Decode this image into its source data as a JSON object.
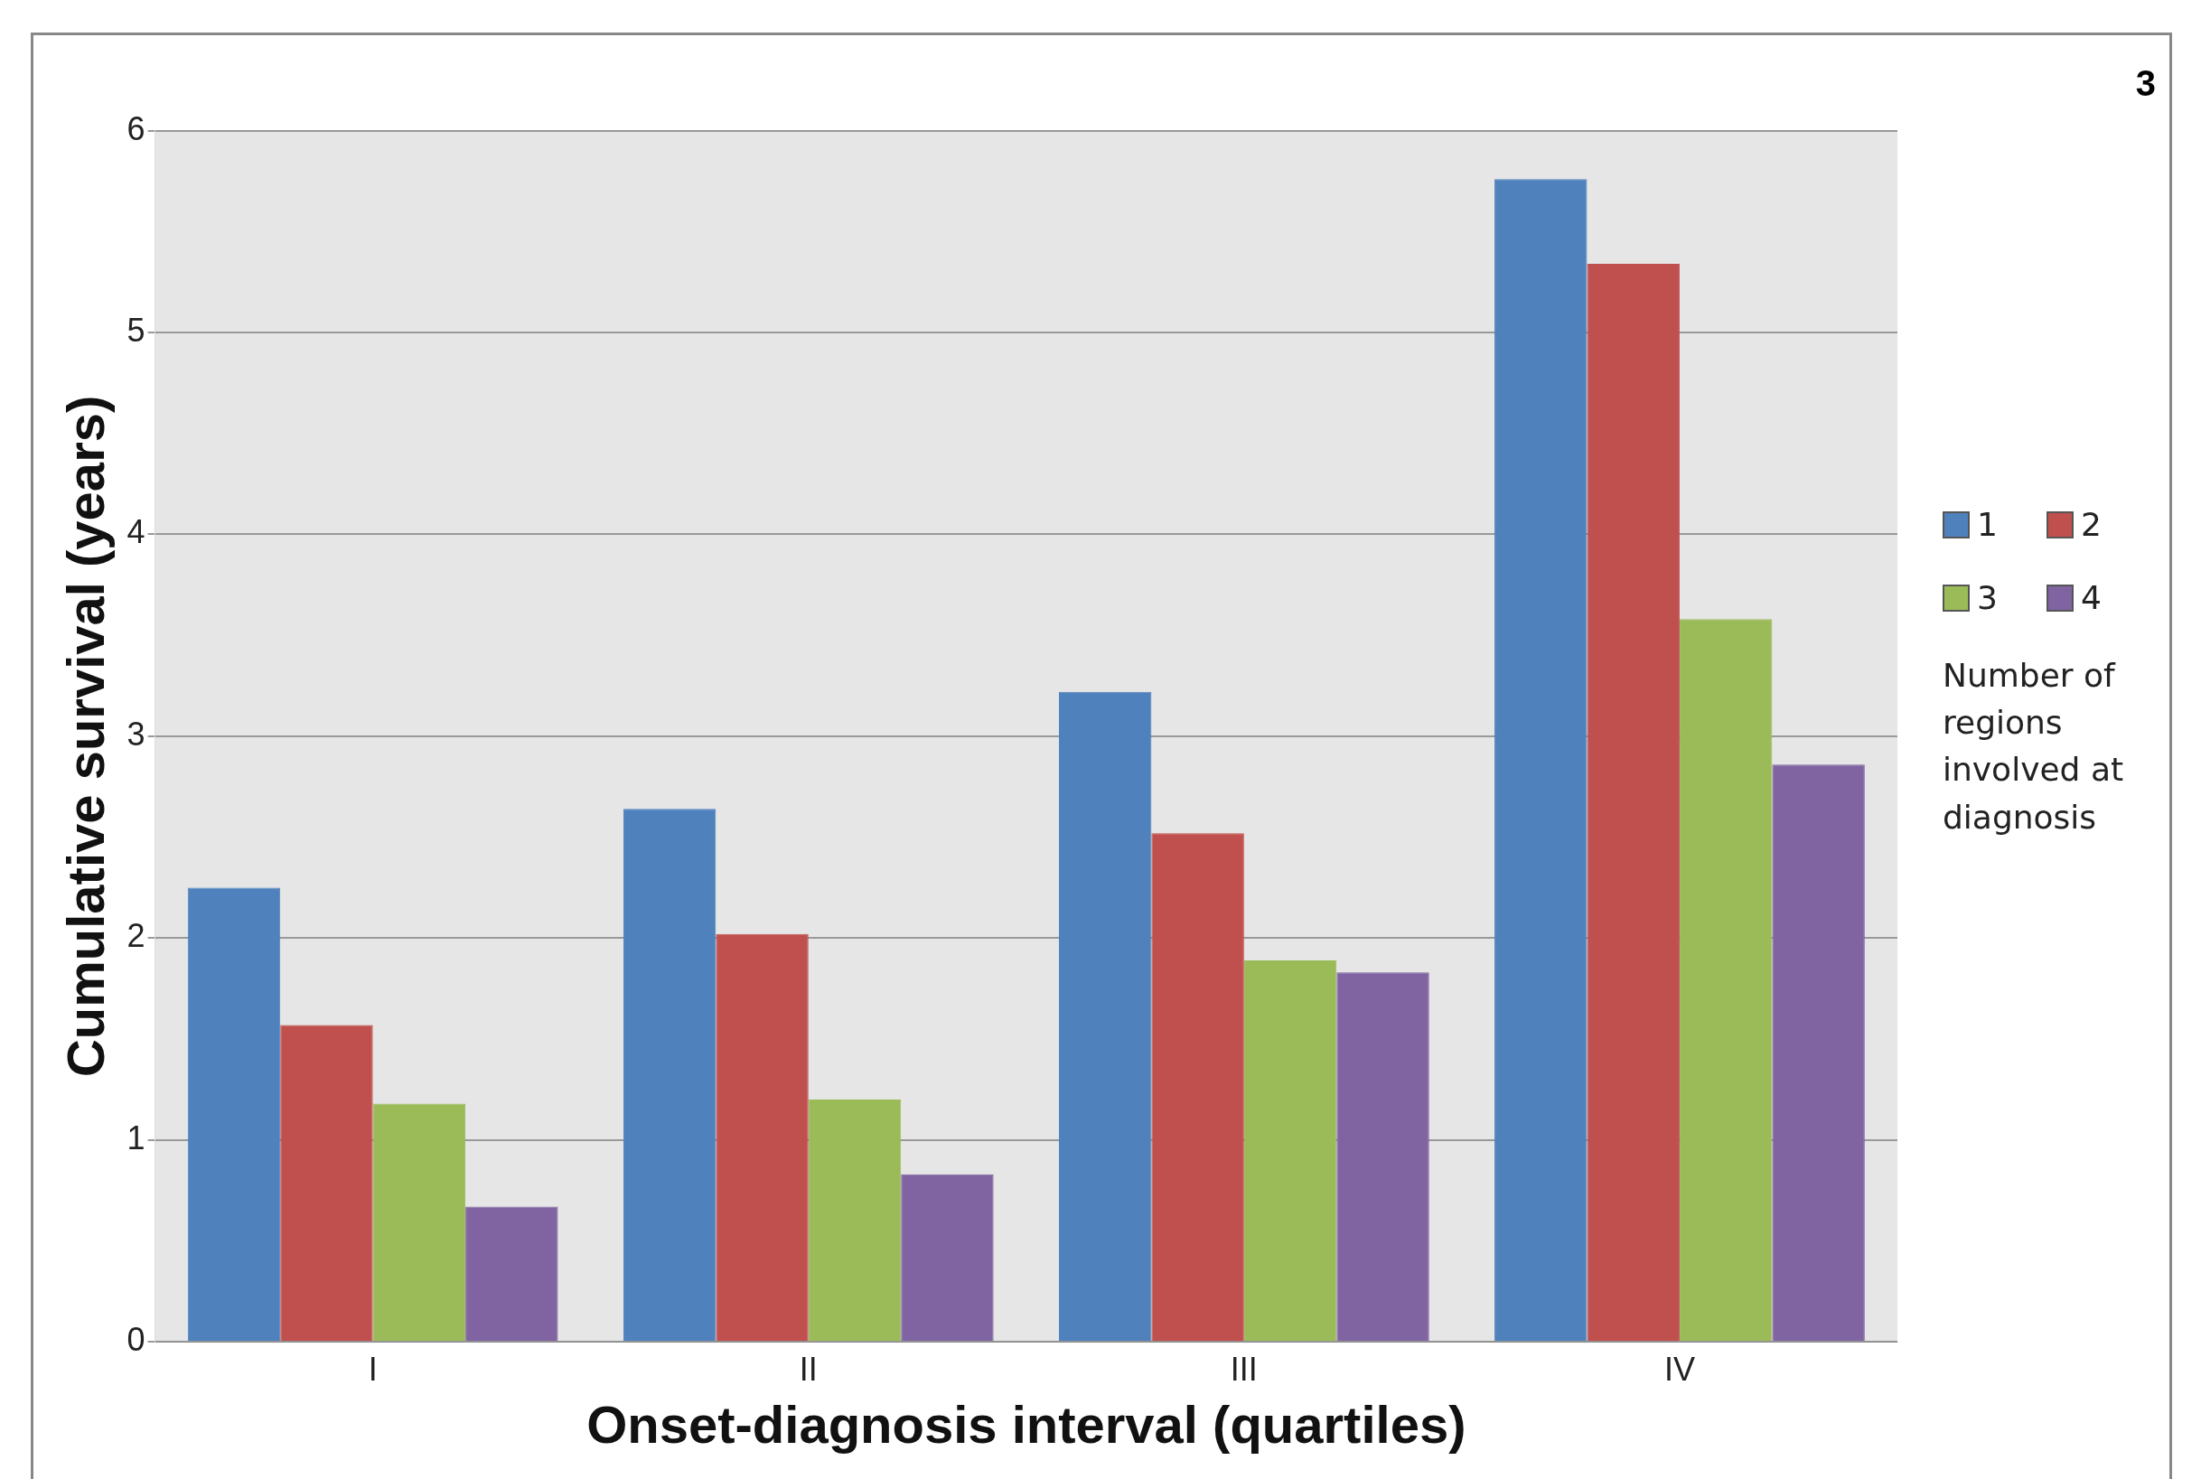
{
  "chart_data": {
    "type": "bar",
    "xlabel": "Onset-diagnosis interval (quartiles)",
    "ylabel": "Cumulative survival (years)",
    "legend_title": "Number of regions involved at diagnosis",
    "annotations": [
      "3"
    ],
    "categories": [
      "I",
      "II",
      "III",
      "IV"
    ],
    "series": [
      {
        "name": "1",
        "color": "#4f81bd",
        "values": [
          2.25,
          2.64,
          3.22,
          5.76
        ]
      },
      {
        "name": "2",
        "color": "#c0504d",
        "values": [
          1.57,
          2.02,
          2.52,
          5.34
        ]
      },
      {
        "name": "3",
        "color": "#9bbb59",
        "values": [
          1.18,
          1.2,
          1.89,
          3.58
        ]
      },
      {
        "name": "4",
        "color": "#8064a2",
        "values": [
          0.67,
          0.83,
          1.83,
          2.86
        ]
      }
    ],
    "ylim": [
      0,
      6
    ],
    "yticks": [
      0,
      1,
      2,
      3,
      4,
      5,
      6
    ],
    "grid": "y",
    "legend": "right"
  }
}
